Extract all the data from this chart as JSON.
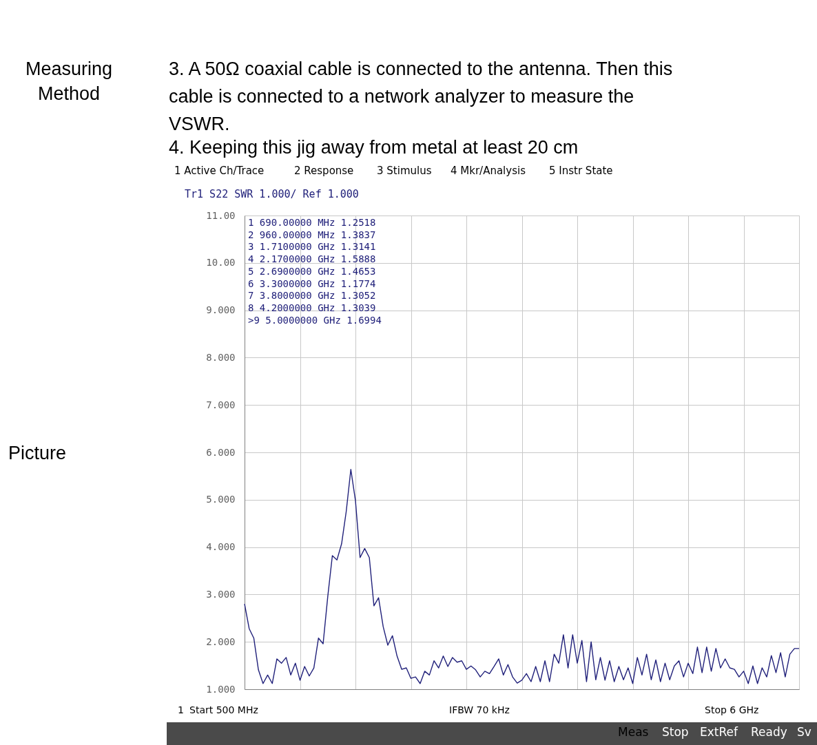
{
  "chart_data": {
    "type": "line",
    "categories": [
      null,
      null,
      null,
      null,
      null,
      null,
      null,
      null,
      null,
      null,
      null,
      null,
      null,
      null,
      null,
      null,
      null,
      null,
      null,
      null,
      null,
      null,
      null,
      null,
      null,
      null,
      null,
      null,
      null,
      null,
      null,
      null,
      null,
      null,
      null,
      null,
      null,
      null,
      null,
      null,
      null,
      null,
      null,
      null,
      null,
      null,
      null,
      null,
      null,
      null,
      null,
      null,
      null,
      null,
      null,
      null,
      null,
      null,
      null,
      null,
      null,
      null,
      null,
      null,
      null,
      null,
      null,
      null,
      null,
      null,
      null,
      null,
      null,
      null,
      null,
      null,
      null,
      null,
      null,
      null,
      null,
      null,
      null,
      null,
      null,
      null,
      null,
      null,
      null,
      null,
      null,
      null,
      null,
      null,
      null,
      null,
      null,
      null,
      null,
      null,
      null,
      null,
      null,
      null,
      null,
      null,
      null,
      null,
      null,
      null,
      null,
      null,
      null,
      null,
      null,
      null,
      null,
      null,
      null,
      null,
      null
    ],
    "ylim": [
      1,
      11
    ],
    "yticks": [
      {
        "value": 1,
        "label": "1.000"
      },
      {
        "value": 2,
        "label": "2.000"
      },
      {
        "value": 3,
        "label": "3.000"
      },
      {
        "value": 4,
        "label": "4.000"
      },
      {
        "value": 5,
        "label": "5.000"
      },
      {
        "value": 6,
        "label": "6.000"
      },
      {
        "value": 7,
        "label": "7.000"
      },
      {
        "value": 8,
        "label": "8.000"
      },
      {
        "value": 9,
        "label": "9.000"
      },
      {
        "value": 10,
        "label": "10.00"
      },
      {
        "value": 11,
        "label": "11.00"
      }
    ],
    "grid": true,
    "series": [
      {
        "color": "#20207a",
        "marker": "none",
        "line_style": "solid",
        "values": [
          2.8,
          2.28,
          2.08,
          1.41,
          1.12,
          1.3,
          1.12,
          1.64,
          1.55,
          1.67,
          1.3,
          1.55,
          1.19,
          1.48,
          1.28,
          1.45,
          2.08,
          1.96,
          2.95,
          3.82,
          3.73,
          4.07,
          4.75,
          5.64,
          4.98,
          3.78,
          3.97,
          3.78,
          2.76,
          2.93,
          2.32,
          1.93,
          2.13,
          1.7,
          1.42,
          1.45,
          1.23,
          1.26,
          1.12,
          1.38,
          1.3,
          1.6,
          1.45,
          1.7,
          1.48,
          1.67,
          1.57,
          1.6,
          1.42,
          1.49,
          1.41,
          1.26,
          1.38,
          1.33,
          1.48,
          1.64,
          1.3,
          1.52,
          1.26,
          1.13,
          1.19,
          1.33,
          1.16,
          1.48,
          1.16,
          1.6,
          1.16,
          1.74,
          1.55,
          2.15,
          1.45,
          2.15,
          1.55,
          2.03,
          1.16,
          2.0,
          1.2,
          1.67,
          1.19,
          1.6,
          1.16,
          1.48,
          1.2,
          1.45,
          1.12,
          1.67,
          1.3,
          1.74,
          1.2,
          1.62,
          1.16,
          1.55,
          1.2,
          1.49,
          1.6,
          1.26,
          1.55,
          1.33,
          1.89,
          1.35,
          1.89,
          1.38,
          1.86,
          1.45,
          1.64,
          1.45,
          1.42,
          1.26,
          1.38,
          1.12,
          1.49,
          1.12,
          1.45,
          1.26,
          1.71,
          1.35,
          1.77,
          1.26,
          1.74,
          1.86,
          1.86
        ]
      }
    ],
    "annotations": [
      "Measuring\nMethod",
      "3.  A 50Ω coaxial cable is connected to the antenna. Then this\n     cable is connected to a network analyzer to measure the\n     VSWR.",
      "4.  Keeping this jig away from metal at least 20 cm",
      "Picture",
      "1 Active Ch/Trace",
      "2 Response",
      "3 Stimulus",
      "4 Mkr/Analysis",
      "5 Instr State",
      "Tr1 S22 SWR 1.000/ Ref 1.000",
      "1 690.00000 MHz 1.2518",
      "2 960.00000 MHz 1.3837",
      "3 1.7100000 GHz 1.3141",
      "4 2.1700000 GHz 1.5888",
      "5 2.6900000 GHz 1.4653",
      "6 3.3000000 GHz 1.1774",
      "7 3.8000000 GHz 1.3052",
      "8 4.2000000 GHz 1.3039",
      ">9 5.0000000 GHz 1.6994",
      "1",
      "Start 500 MHz",
      "IFBW 70 kHz",
      "Stop 6 GHz",
      "Meas",
      "Stop",
      "ExtRef",
      "Ready",
      "Sv"
    ]
  }
}
